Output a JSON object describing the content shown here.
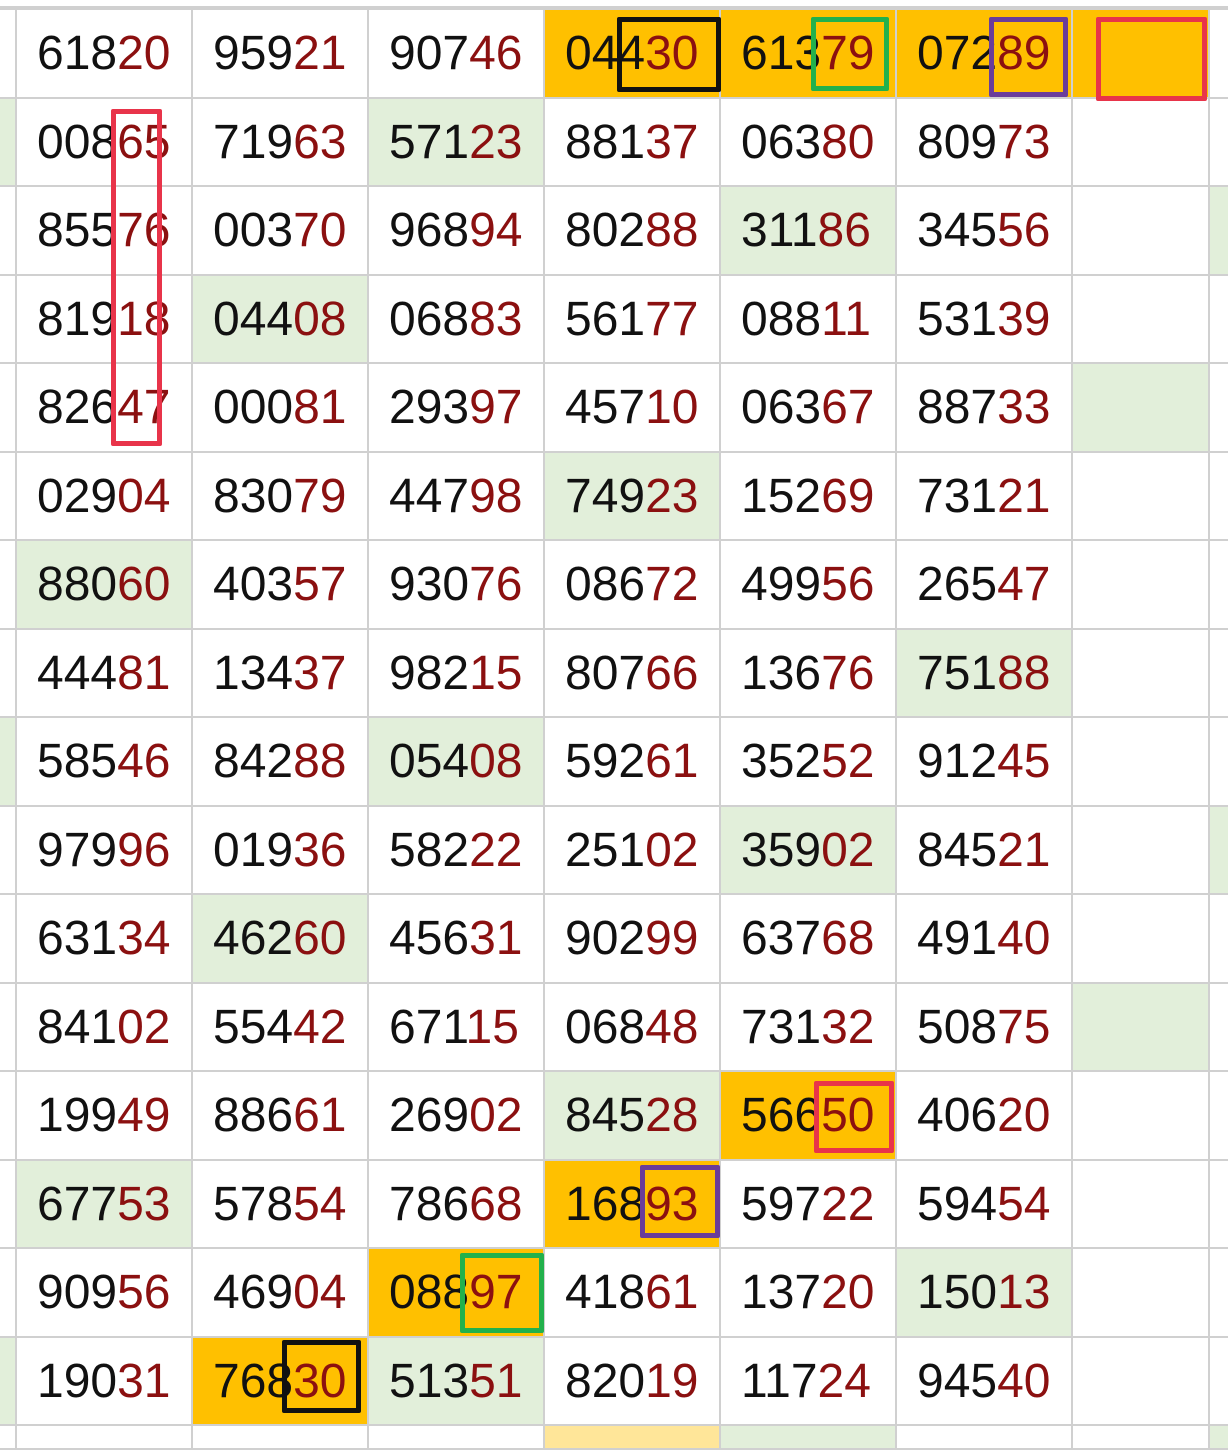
{
  "colors": {
    "green_fill": "#e2efda",
    "orange_fill": "#ffc000",
    "light_yellow_fill": "#ffe699",
    "tail_digits": "#8b1010",
    "box_black": "#111111",
    "box_green": "#22b14c",
    "box_purple": "#6a3d9a",
    "box_red": "#e8344a"
  },
  "rows": [
    {
      "numbers": [
        "61820",
        "95921",
        "90746",
        "04430",
        "61379",
        "07289"
      ],
      "fills": [
        "",
        "",
        "",
        "",
        "o",
        "o",
        "o",
        "o",
        ""
      ]
    },
    {
      "numbers": [
        "00865",
        "71963",
        "57123",
        "88137",
        "06380",
        "80973"
      ],
      "fills": [
        "g",
        "",
        "",
        "g",
        "",
        "",
        "",
        "",
        ""
      ]
    },
    {
      "numbers": [
        "85576",
        "00370",
        "96894",
        "80288",
        "31186",
        "34556"
      ],
      "fills": [
        "",
        "",
        "",
        "",
        "",
        "g",
        "",
        "",
        "g"
      ]
    },
    {
      "numbers": [
        "81918",
        "04408",
        "06883",
        "56177",
        "08811",
        "53139"
      ],
      "fills": [
        "",
        "",
        "g",
        "",
        "",
        "",
        "",
        "",
        ""
      ]
    },
    {
      "numbers": [
        "82647",
        "00081",
        "29397",
        "45710",
        "06367",
        "88733"
      ],
      "fills": [
        "",
        "",
        "",
        "",
        "",
        "",
        "",
        "g",
        ""
      ]
    },
    {
      "numbers": [
        "02904",
        "83079",
        "44798",
        "74923",
        "15269",
        "73121"
      ],
      "fills": [
        "",
        "",
        "",
        "",
        "g",
        "",
        "",
        "",
        ""
      ]
    },
    {
      "numbers": [
        "88060",
        "40357",
        "93076",
        "08672",
        "49956",
        "26547"
      ],
      "fills": [
        "",
        "g",
        "",
        "",
        "",
        "",
        "",
        "",
        ""
      ]
    },
    {
      "numbers": [
        "44481",
        "13437",
        "98215",
        "80766",
        "13676",
        "75188"
      ],
      "fills": [
        "",
        "",
        "",
        "",
        "",
        "",
        "g",
        "",
        ""
      ]
    },
    {
      "numbers": [
        "58546",
        "84288",
        "05408",
        "59261",
        "35252",
        "91245"
      ],
      "fills": [
        "g",
        "",
        "",
        "g",
        "",
        "",
        "",
        "",
        ""
      ]
    },
    {
      "numbers": [
        "97996",
        "01936",
        "58222",
        "25102",
        "35902",
        "84521"
      ],
      "fills": [
        "",
        "",
        "",
        "",
        "",
        "g",
        "",
        "",
        "g"
      ]
    },
    {
      "numbers": [
        "63134",
        "46260",
        "45631",
        "90299",
        "63768",
        "49140"
      ],
      "fills": [
        "",
        "",
        "g",
        "",
        "",
        "",
        "",
        "",
        ""
      ]
    },
    {
      "numbers": [
        "84102",
        "55442",
        "67115",
        "06848",
        "73132",
        "50875"
      ],
      "fills": [
        "",
        "",
        "",
        "",
        "",
        "",
        "",
        "g",
        ""
      ]
    },
    {
      "numbers": [
        "19949",
        "88661",
        "26902",
        "84528",
        "56650",
        "40620"
      ],
      "fills": [
        "",
        "",
        "",
        "",
        "g",
        "o",
        "",
        "",
        ""
      ]
    },
    {
      "numbers": [
        "67753",
        "57854",
        "78668",
        "16893",
        "59722",
        "59454"
      ],
      "fills": [
        "",
        "g",
        "",
        "",
        "o",
        "",
        "",
        "",
        ""
      ]
    },
    {
      "numbers": [
        "90956",
        "46904",
        "08897",
        "41861",
        "13720",
        "15013"
      ],
      "fills": [
        "",
        "",
        "",
        "o",
        "",
        "",
        "g",
        "",
        ""
      ]
    },
    {
      "numbers": [
        "19031",
        "76830",
        "51351",
        "82019",
        "11724",
        "94540"
      ],
      "fills": [
        "g",
        "",
        "o",
        "g",
        "",
        "",
        "",
        "",
        ""
      ]
    },
    {
      "numbers": [
        "",
        "",
        "",
        "",
        "",
        ""
      ],
      "fills": [
        "",
        "",
        "",
        "",
        "y",
        "g",
        "",
        "",
        "g"
      ]
    }
  ]
}
